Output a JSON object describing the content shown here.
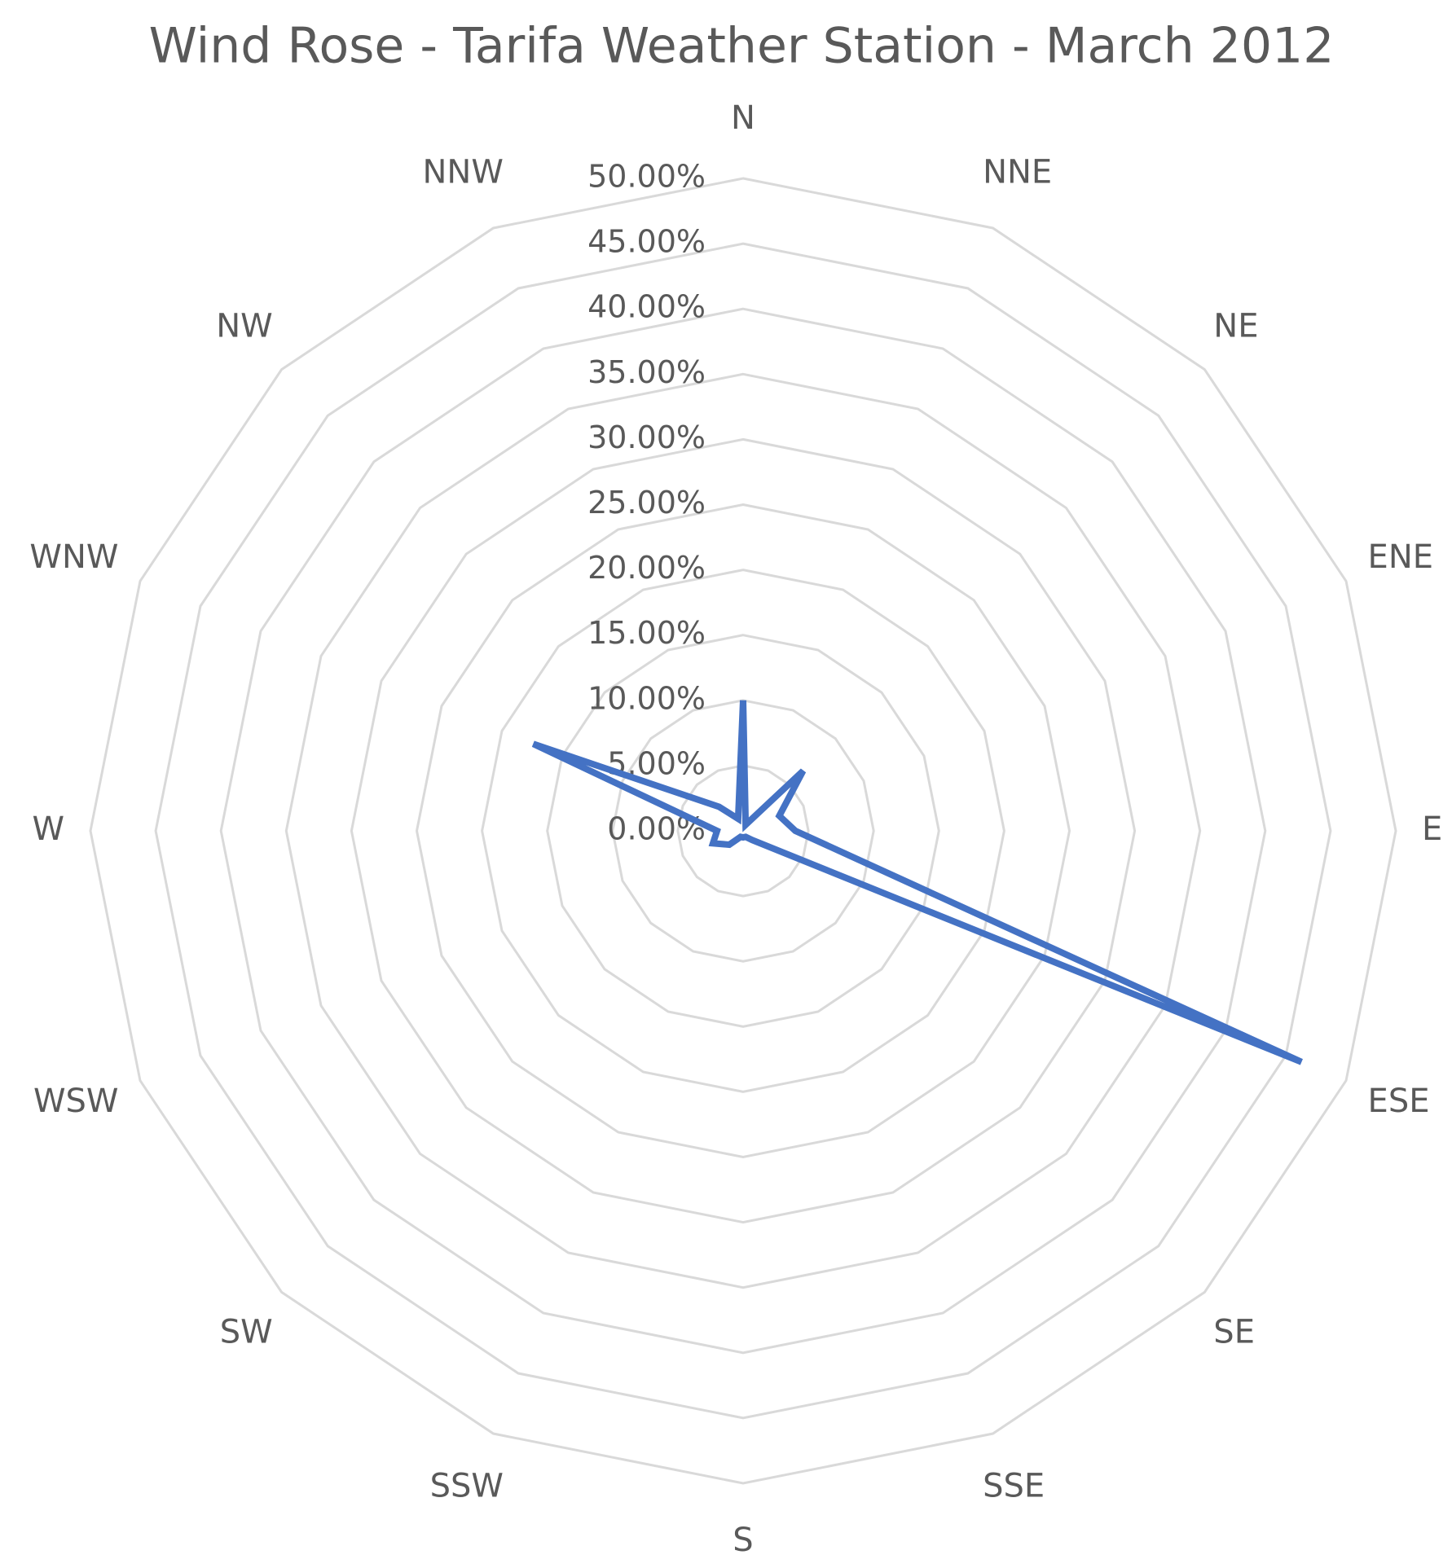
{
  "chart_data": {
    "type": "radar",
    "title": "Wind Rose - Tarifa Weather Station - March 2012",
    "categories": [
      "N",
      "NNE",
      "NE",
      "ENE",
      "E",
      "ESE",
      "SE",
      "SSE",
      "S",
      "SSW",
      "SW",
      "WSW",
      "W",
      "WNW",
      "NW",
      "NNW"
    ],
    "series": [
      {
        "color": "#4472c4",
        "values": [
          10,
          0.5,
          6.5,
          3,
          4,
          46.3,
          1,
          0.5,
          0.5,
          0.5,
          1.5,
          2.5,
          2,
          17.4,
          2.6,
          1
        ]
      }
    ],
    "ylim": [
      0,
      50
    ],
    "yticks": [
      {
        "value": 0,
        "label": "0.00%"
      },
      {
        "value": 5,
        "label": "5.00%"
      },
      {
        "value": 10,
        "label": "10.00%"
      },
      {
        "value": 15,
        "label": "15.00%"
      },
      {
        "value": 20,
        "label": "20.00%"
      },
      {
        "value": 25,
        "label": "25.00%"
      },
      {
        "value": 30,
        "label": "30.00%"
      },
      {
        "value": 35,
        "label": "35.00%"
      },
      {
        "value": 40,
        "label": "40.00%"
      },
      {
        "value": 45,
        "label": "45.00%"
      },
      {
        "value": 50,
        "label": "50.00%"
      }
    ],
    "grid": true
  }
}
